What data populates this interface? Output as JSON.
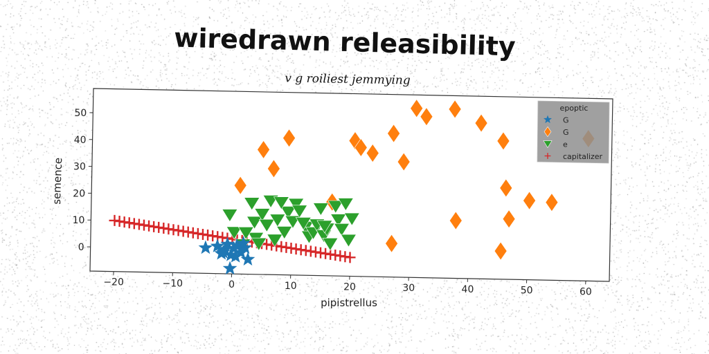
{
  "chart_data": {
    "type": "scatter",
    "title": "wiredrawn releasibility",
    "subtitle": "v g roiliest jemmying",
    "xlabel": "pipistrellus",
    "ylabel": "semence",
    "xlim": [
      -24,
      64
    ],
    "ylim": [
      -9,
      59
    ],
    "xticks": [
      -20,
      -10,
      0,
      10,
      20,
      30,
      40,
      50,
      60
    ],
    "yticks": [
      0,
      10,
      20,
      30,
      40,
      50
    ],
    "grid": false,
    "legend": {
      "title": "epoptic",
      "placement": "top-right"
    },
    "series": [
      {
        "name": "G",
        "marker": "star",
        "color": "#1f77b4",
        "x": [
          -4.5,
          -2.5,
          -1.8,
          -1.2,
          -0.8,
          -0.2,
          0.3,
          0.8,
          1.5,
          2.2,
          2.7,
          -0.3,
          0.6,
          -1.5,
          1.9
        ],
        "y": [
          0.5,
          1.2,
          -1.5,
          0.0,
          2.0,
          -2.0,
          0.5,
          1.5,
          -1.0,
          0.8,
          -3.5,
          -7.0,
          -2.5,
          -1.0,
          2.5
        ]
      },
      {
        "name": "G",
        "marker": "diamond",
        "color": "#ff7f0e",
        "x": [
          1.2,
          5.0,
          6.8,
          9.3,
          16.8,
          20.5,
          21.5,
          23.5,
          27.0,
          27.0,
          28.8,
          30.8,
          32.5,
          37.3,
          37.8,
          41.8,
          45.5,
          45.6,
          46.2,
          46.8,
          50.2,
          54.0,
          60.0
        ],
        "y": [
          24.0,
          37.5,
          30.5,
          42.0,
          18.5,
          41.5,
          39.0,
          37.0,
          3.5,
          44.5,
          34.0,
          54.0,
          51.0,
          54.0,
          12.5,
          49.0,
          1.5,
          42.5,
          25.0,
          13.5,
          20.5,
          20.0,
          44.0
        ]
      },
      {
        "name": "e",
        "marker": "triangle-down",
        "color": "#2ca02c",
        "x": [
          -0.5,
          0.3,
          1.8,
          3.2,
          3.7,
          4.0,
          5.0,
          5.8,
          6.4,
          7.2,
          7.6,
          8.8,
          9.4,
          10.2,
          10.7,
          11.3,
          12.4,
          13.0,
          13.7,
          14.3,
          14.9,
          15.5,
          16.0,
          16.6,
          17.4,
          17.9,
          18.5,
          19.1,
          19.7,
          20.2,
          2.3,
          8.2,
          12.0,
          4.5,
          15.6
        ],
        "y": [
          13.0,
          6.5,
          2.0,
          17.5,
          10.5,
          4.5,
          13.5,
          9.5,
          18.5,
          4.0,
          11.5,
          7.0,
          14.5,
          11.0,
          17.5,
          15.0,
          9.0,
          5.5,
          7.0,
          10.0,
          16.0,
          6.0,
          8.5,
          3.0,
          17.0,
          12.0,
          8.5,
          18.0,
          4.5,
          12.5,
          6.5,
          18.0,
          10.5,
          2.5,
          9.5
        ]
      },
      {
        "name": "capitalizer",
        "marker": "plus",
        "color": "#d62728",
        "fit": {
          "x0": -20,
          "y0": 10,
          "x1": 20,
          "y1": -2,
          "n": 49
        }
      }
    ]
  }
}
